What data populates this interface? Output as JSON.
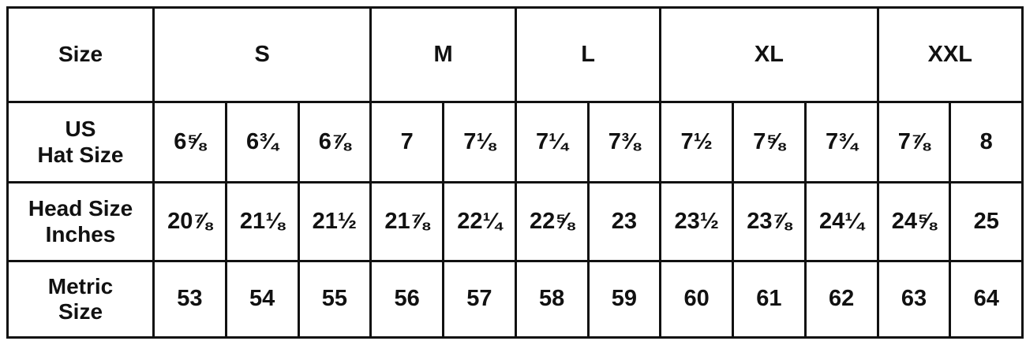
{
  "header": {
    "label": "Size",
    "groups": [
      "S",
      "M",
      "L",
      "XL",
      "XXL"
    ]
  },
  "rows": [
    {
      "label_line1": "US",
      "label_line2": "Hat Size",
      "values": [
        "6⅝",
        "6¾",
        "6⅞",
        "7",
        "7⅛",
        "7¼",
        "7⅜",
        "7½",
        "7⅝",
        "7¾",
        "7⅞",
        "8"
      ]
    },
    {
      "label_line1": "Head Size",
      "label_line2": "Inches",
      "values": [
        "20⅞",
        "21⅛",
        "21½",
        "21⅞",
        "22¼",
        "22⅝",
        "23",
        "23½",
        "23⅞",
        "24¼",
        "24⅝",
        "25"
      ]
    },
    {
      "label_line1": "Metric",
      "label_line2": "Size",
      "values": [
        "53",
        "54",
        "55",
        "56",
        "57",
        "58",
        "59",
        "60",
        "61",
        "62",
        "63",
        "64"
      ]
    }
  ]
}
